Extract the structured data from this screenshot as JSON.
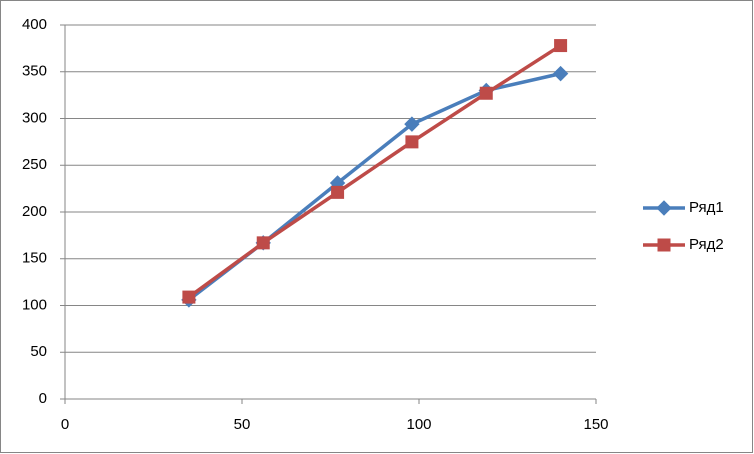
{
  "chart_data": {
    "type": "line",
    "x": [
      35,
      56,
      77,
      98,
      119,
      140
    ],
    "series": [
      {
        "name": "Ряд1",
        "color": "#4a7ebb",
        "marker": "diamond",
        "values": [
          106,
          167,
          231,
          294,
          330,
          348
        ]
      },
      {
        "name": "Ряд2",
        "color": "#be4b48",
        "marker": "square",
        "values": [
          109,
          167,
          221,
          275,
          327,
          378
        ]
      }
    ],
    "xlim": [
      0,
      150
    ],
    "xticks": [
      0,
      50,
      100,
      150
    ],
    "ylim": [
      0,
      400
    ],
    "yticks": [
      0,
      50,
      100,
      150,
      200,
      250,
      300,
      350,
      400
    ],
    "grid": true,
    "legend": "right"
  }
}
